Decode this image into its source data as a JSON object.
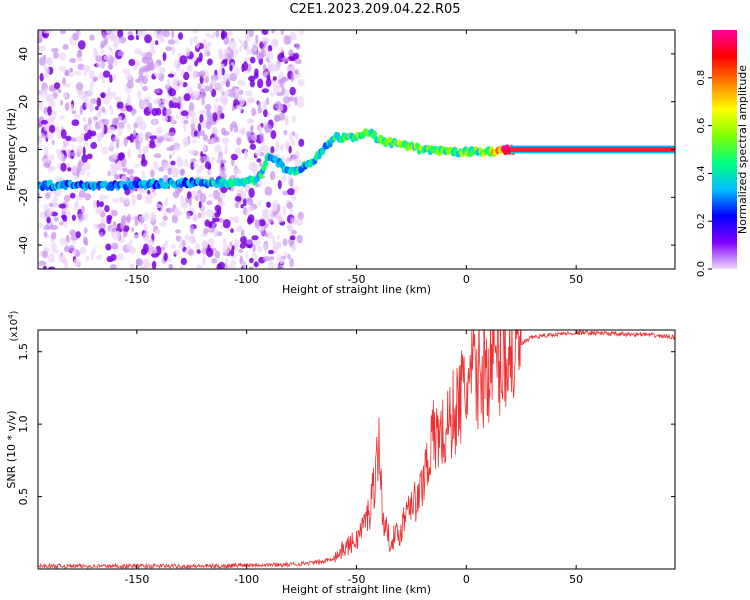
{
  "title": "C2E1.2023.209.04.22.R05",
  "chart_data": [
    {
      "type": "heatmap",
      "name": "spectrogram",
      "xlabel": "Height of straight line (km)",
      "ylabel": "Frequency (Hz)",
      "xlim": [
        -195,
        95
      ],
      "ylim": [
        -50,
        50
      ],
      "xticks": [
        -150,
        -100,
        -50,
        0,
        50
      ],
      "yticks": [
        -40,
        -20,
        0,
        20,
        40
      ],
      "colorbar": {
        "label": "Normalized spectral amplitude",
        "range": [
          0.0,
          1.0
        ],
        "ticks": [
          0.0,
          0.2,
          0.4,
          0.6,
          0.8
        ],
        "colormap": [
          "#f0d8f8",
          "#8000ff",
          "#0000ff",
          "#00c0ff",
          "#00ff80",
          "#80ff00",
          "#ffff00",
          "#ff8000",
          "#ff0000",
          "#ff00a0"
        ]
      },
      "ridge": {
        "x": [
          -195,
          -160,
          -130,
          -110,
          -95,
          -90,
          -80,
          -70,
          -60,
          -50,
          -45,
          -40,
          -30,
          -20,
          -10,
          0,
          10,
          20,
          95
        ],
        "frequency": [
          -15,
          -15,
          -14,
          -14,
          -13,
          -2,
          -10,
          -5,
          5,
          5,
          8,
          4,
          2,
          0,
          -1,
          -1,
          -1,
          0,
          0
        ],
        "amplitude": [
          0.3,
          0.3,
          0.3,
          0.35,
          0.4,
          0.35,
          0.35,
          0.35,
          0.4,
          0.45,
          0.45,
          0.45,
          0.5,
          0.5,
          0.45,
          0.5,
          0.5,
          0.9,
          0.9
        ]
      },
      "noise_region_x": [
        -195,
        -75
      ]
    },
    {
      "type": "line",
      "name": "snr",
      "xlabel": "Height of straight line (km)",
      "ylabel": "SNR (10 * v/v)",
      "y_multiplier": "(x10",
      "y_multiplier_exp": "4",
      "y_multiplier_close": ")",
      "xlim": [
        -195,
        95
      ],
      "ylim": [
        0,
        1.65
      ],
      "xticks": [
        -150,
        -100,
        -50,
        0,
        50
      ],
      "yticks": [
        0.5,
        1.0,
        1.5
      ],
      "color": "#f03030",
      "x": [
        -195,
        -150,
        -110,
        -100,
        -80,
        -65,
        -60,
        -55,
        -50,
        -47,
        -44,
        -42,
        -40,
        -38,
        -35,
        -30,
        -26,
        -22,
        -20,
        -18,
        -15,
        -12,
        -10,
        -8,
        -5,
        -2,
        0,
        5,
        10,
        15,
        20,
        25,
        30,
        40,
        50,
        60,
        70,
        80,
        95
      ],
      "y": [
        0.02,
        0.02,
        0.02,
        0.03,
        0.03,
        0.05,
        0.08,
        0.15,
        0.2,
        0.3,
        0.4,
        0.6,
        0.9,
        0.35,
        0.2,
        0.25,
        0.5,
        0.45,
        0.6,
        0.75,
        0.9,
        0.95,
        0.9,
        1.0,
        1.1,
        1.2,
        1.25,
        1.35,
        1.4,
        1.45,
        1.5,
        1.55,
        1.6,
        1.62,
        1.63,
        1.63,
        1.62,
        1.62,
        1.6
      ]
    }
  ]
}
